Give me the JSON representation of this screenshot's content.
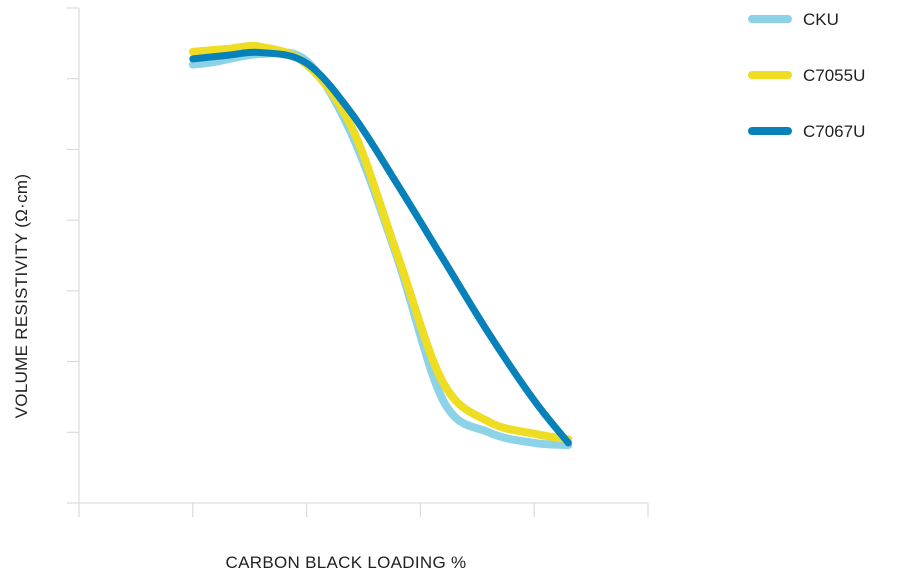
{
  "chart_data": {
    "type": "line",
    "title": "",
    "xlabel": "CARBON BLACK LOADING %",
    "ylabel": "VOLUME RESISTIVITY (Ω·cm)",
    "x_tick_count": 6,
    "y_tick_count": 8,
    "grid": false,
    "legend_position": "top-right",
    "xlim": [
      0,
      5
    ],
    "ylim": [
      0,
      7
    ],
    "series": [
      {
        "name": "CKU",
        "color": "#8dd3e8",
        "x": [
          1,
          1.2,
          1.6,
          2,
          2.4,
          2.8,
          3.2,
          3.6,
          4,
          4.3
        ],
        "y": [
          6.2,
          6.24,
          6.35,
          6.25,
          5.2,
          3.45,
          1.45,
          1.0,
          0.85,
          0.82
        ]
      },
      {
        "name": "C7055U",
        "color": "#eedd22",
        "x": [
          1,
          1.3,
          1.6,
          2,
          2.4,
          2.8,
          3.2,
          3.6,
          4,
          4.3
        ],
        "y": [
          6.38,
          6.42,
          6.45,
          6.2,
          5.3,
          3.5,
          1.7,
          1.15,
          0.98,
          0.9
        ]
      },
      {
        "name": "C7067U",
        "color": "#0681b9",
        "x": [
          1,
          1.3,
          1.6,
          2,
          2.4,
          2.8,
          3.2,
          3.6,
          4,
          4.3
        ],
        "y": [
          6.28,
          6.33,
          6.37,
          6.22,
          5.5,
          4.5,
          3.45,
          2.4,
          1.45,
          0.85
        ]
      }
    ]
  }
}
